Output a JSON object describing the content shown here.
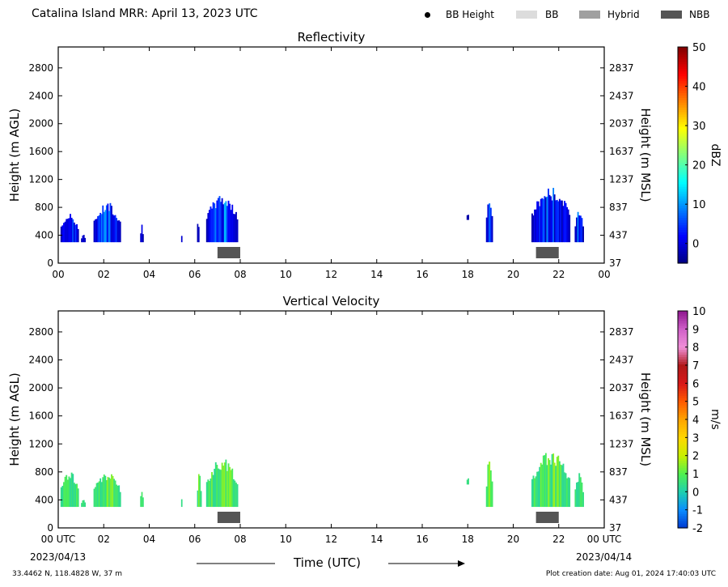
{
  "title": "Catalina Island MRR:  April 13, 2023 UTC",
  "legend": [
    {
      "label": "BB Height",
      "kind": "dot",
      "color": "#000000"
    },
    {
      "label": "BB",
      "kind": "box",
      "color": "#dcdcdc"
    },
    {
      "label": "Hybrid",
      "kind": "box",
      "color": "#a0a0a0"
    },
    {
      "label": "NBB",
      "kind": "box",
      "color": "#555555"
    }
  ],
  "xlabel": "Time (UTC)",
  "date_start": "2023/04/13",
  "date_end": "2023/04/14",
  "footer_left": "33.4462 N, 118.4828 W, 37 m",
  "footer_right": "Plot creation date: Aug 01, 2024 17:40:03 UTC",
  "chart_data": [
    {
      "type": "heatmap",
      "title": "Reflectivity",
      "xlabel": "",
      "ylabel": "Height (m AGL)",
      "ylabel_right": "Height (m MSL)",
      "xlim": [
        0,
        24
      ],
      "ylim": [
        0,
        3100
      ],
      "x_ticks": [
        "00",
        "02",
        "04",
        "06",
        "08",
        "10",
        "12",
        "14",
        "16",
        "18",
        "20",
        "22",
        "00"
      ],
      "y_ticks": [
        0,
        400,
        800,
        1200,
        1600,
        2000,
        2400,
        2800
      ],
      "y_ticks_right": [
        "37",
        "437",
        "837",
        "1237",
        "1637",
        "2037",
        "2437",
        "2837"
      ],
      "colorbar": {
        "label": "dBZ",
        "range": [
          -5,
          50
        ],
        "ticks": [
          0,
          10,
          20,
          30,
          40,
          50
        ]
      },
      "echoes": [
        {
          "start": 0.1,
          "end": 0.9,
          "top": 720,
          "base": 300
        },
        {
          "start": 1.0,
          "end": 1.2,
          "top": 420,
          "base": 300
        },
        {
          "start": 1.55,
          "end": 2.75,
          "top": 880,
          "base": 300
        },
        {
          "start": 3.6,
          "end": 3.75,
          "top": 580,
          "base": 300
        },
        {
          "start": 5.4,
          "end": 5.45,
          "top": 420,
          "base": 300
        },
        {
          "start": 6.1,
          "end": 6.2,
          "top": 780,
          "base": 300
        },
        {
          "start": 6.5,
          "end": 7.9,
          "top": 1000,
          "base": 300
        },
        {
          "start": 17.95,
          "end": 18.05,
          "top": 780,
          "base": 620
        },
        {
          "start": 18.8,
          "end": 19.1,
          "top": 1000,
          "base": 300
        },
        {
          "start": 20.8,
          "end": 22.5,
          "top": 1100,
          "base": 300
        },
        {
          "start": 22.7,
          "end": 23.1,
          "top": 800,
          "base": 300
        }
      ],
      "bright_band": [
        {
          "start": 7.0,
          "end": 8.0,
          "type": "NBB"
        },
        {
          "start": 21.0,
          "end": 22.0,
          "type": "NBB"
        }
      ]
    },
    {
      "type": "heatmap",
      "title": "Vertical Velocity",
      "xlabel": "Time (UTC)",
      "ylabel": "Height (m AGL)",
      "ylabel_right": "Height (m MSL)",
      "xlim": [
        0,
        24
      ],
      "ylim": [
        0,
        3100
      ],
      "x_ticks": [
        "00 UTC",
        "02",
        "04",
        "06",
        "08",
        "10",
        "12",
        "14",
        "16",
        "18",
        "20",
        "22",
        "00 UTC"
      ],
      "y_ticks": [
        0,
        400,
        800,
        1200,
        1600,
        2000,
        2400,
        2800
      ],
      "y_ticks_right": [
        "37",
        "437",
        "837",
        "1237",
        "1637",
        "2037",
        "2437",
        "2837"
      ],
      "colorbar": {
        "label": "m/s",
        "range": [
          -2,
          10
        ],
        "ticks": [
          -2,
          -1,
          0,
          1,
          2,
          3,
          4,
          5,
          6,
          7,
          8,
          9,
          10
        ]
      },
      "echoes": [
        {
          "start": 0.1,
          "end": 0.9,
          "top": 820,
          "base": 300
        },
        {
          "start": 1.0,
          "end": 1.2,
          "top": 420,
          "base": 300
        },
        {
          "start": 1.55,
          "end": 2.75,
          "top": 800,
          "base": 300
        },
        {
          "start": 3.6,
          "end": 3.75,
          "top": 580,
          "base": 300
        },
        {
          "start": 5.4,
          "end": 5.45,
          "top": 420,
          "base": 300
        },
        {
          "start": 6.1,
          "end": 6.3,
          "top": 800,
          "base": 300
        },
        {
          "start": 6.5,
          "end": 7.9,
          "top": 1000,
          "base": 300
        },
        {
          "start": 17.95,
          "end": 18.05,
          "top": 780,
          "base": 620
        },
        {
          "start": 18.8,
          "end": 19.1,
          "top": 1000,
          "base": 300
        },
        {
          "start": 20.8,
          "end": 22.5,
          "top": 1100,
          "base": 300
        },
        {
          "start": 22.7,
          "end": 23.1,
          "top": 800,
          "base": 300
        }
      ],
      "bright_band": [
        {
          "start": 7.0,
          "end": 8.0,
          "type": "NBB"
        },
        {
          "start": 21.0,
          "end": 22.0,
          "type": "NBB"
        }
      ]
    }
  ]
}
